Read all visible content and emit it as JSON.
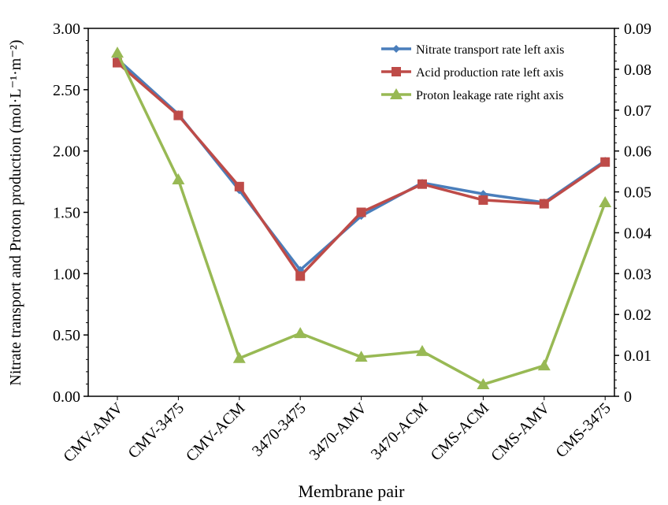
{
  "chart_data": {
    "type": "line",
    "title": "",
    "xlabel": "Membrane pair",
    "ylabel": "Nitrate transport and Proton production (mol·L⁻¹·m⁻²)",
    "ylabel_right": "",
    "categories": [
      "CMV-AMV",
      "CMV-3475",
      "CMV-ACM",
      "3470-3475",
      "3470-AMV",
      "3470-ACM",
      "CMS-ACM",
      "CMS-AMV",
      "CMS-3475"
    ],
    "ylim": [
      0,
      3
    ],
    "ylim_right": [
      0,
      0.09
    ],
    "yticks": [
      "0.00",
      "0.50",
      "1.00",
      "1.50",
      "2.00",
      "2.50",
      "3.00"
    ],
    "yticks_right": [
      "0",
      "0.01",
      "0.02",
      "0.03",
      "0.04",
      "0.05",
      "0.06",
      "0.07",
      "0.08",
      "0.09"
    ],
    "grid": false,
    "legend_position": "top-right",
    "series": [
      {
        "name": "Nitrate transport rate left axis",
        "axis": "left",
        "marker": "diamond",
        "color": "#4a7ebb",
        "values": [
          2.75,
          2.3,
          1.68,
          1.03,
          1.47,
          1.74,
          1.65,
          1.58,
          1.92
        ]
      },
      {
        "name": "Acid production rate left axis",
        "axis": "left",
        "marker": "square",
        "color": "#be4b48",
        "values": [
          2.72,
          2.29,
          1.71,
          0.98,
          1.5,
          1.73,
          1.6,
          1.57,
          1.91
        ]
      },
      {
        "name": "Proton leakage rate right  axis",
        "axis": "right",
        "marker": "triangle",
        "color": "#98b954",
        "values": [
          0.084,
          0.053,
          0.0093,
          0.0154,
          0.0096,
          0.011,
          0.0029,
          0.0075,
          0.0474
        ]
      }
    ]
  }
}
